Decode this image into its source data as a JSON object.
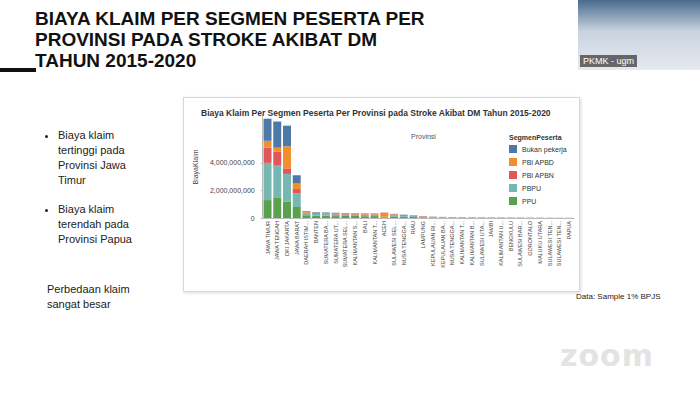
{
  "slide": {
    "title": [
      "BIAYA KLAIM PER SEGMEN PESERTA PER",
      "PROVINSI PADA STROKE AKIBAT DM",
      "TAHUN 2015-2020"
    ],
    "bullets": [
      "Biaya klaim tertinggi pada Provinsi Jawa Timur",
      "Biaya klaim terendah pada Provinsi Papua"
    ],
    "note": "Perbedaan klaim sangat besar",
    "source": "Data: Sample 1% BPJS",
    "speaker_label": "PKMK - ugm",
    "watermark": "zoom"
  },
  "chart_data": {
    "type": "bar",
    "title": "Biaya Klaim Per Segmen Peserta Per Provinsi pada Stroke Akibat DM Tahun 2015-2020",
    "x_label": "Provinsi",
    "y_label": "BiayaKlaim",
    "legend_title": "SegmenPeserta",
    "legend": "right",
    "stacked": true,
    "grid": false,
    "categories": [
      "JAWA TIMUR",
      "JAWA TENGAH",
      "DKI JAKARTA",
      "JAWA BARAT",
      "DAERAH ISTIM...",
      "BANTEN",
      "SUMATERA BA...",
      "SUMATERA UT...",
      "SUMATERA SEL...",
      "KALIMANTAN S...",
      "BALI",
      "KALIMANTAN T...",
      "ACEH",
      "SULAWESI SEL...",
      "NUSA TENGGA...",
      "RIAU",
      "LAMPUNG",
      "KEPULAUAN RI...",
      "KEPULAUAN BA...",
      "NUSA TENGGA...",
      "KALIMANTAN T...",
      "KALIMANTAN B...",
      "SULAWESI UTA...",
      "JAMBI",
      "KALIMANTAN U...",
      "BENGKULU",
      "SULAWESI BAR...",
      "GORONTALO",
      "MALUKU UTARA",
      "SULAWESI TEN...",
      "SULAWESI TEN...",
      "PAPUA"
    ],
    "series": [
      {
        "name": "Bukan pekerja",
        "color": "#4e79a7",
        "values": [
          1600000000,
          1900000000,
          1500000000,
          600000000,
          50000000,
          40000000,
          40000000,
          40000000,
          30000000,
          30000000,
          30000000,
          30000000,
          10000000,
          20000000,
          20000000,
          20000000,
          10000000,
          10000000,
          10000000,
          5000000,
          5000000,
          6000000,
          5000000,
          5000000,
          4000000,
          4000000,
          3000000,
          3000000,
          3000000,
          2000000,
          2000000,
          2000000
        ]
      },
      {
        "name": "PBI APBD",
        "color": "#f28e2b",
        "values": [
          500000000,
          300000000,
          1600000000,
          400000000,
          50000000,
          20000000,
          20000000,
          10000000,
          20000000,
          20000000,
          40000000,
          20000000,
          300000000,
          20000000,
          10000000,
          10000000,
          10000000,
          10000000,
          0,
          5000000,
          5000000,
          6000000,
          5000000,
          5000000,
          4000000,
          4000000,
          4000000,
          3000000,
          3000000,
          3000000,
          2000000,
          2000000
        ]
      },
      {
        "name": "PBI APBN",
        "color": "#e15759",
        "values": [
          1100000000,
          1000000000,
          400000000,
          300000000,
          80000000,
          60000000,
          60000000,
          70000000,
          60000000,
          50000000,
          40000000,
          40000000,
          20000000,
          60000000,
          60000000,
          20000000,
          30000000,
          10000000,
          10000000,
          20000000,
          10000000,
          12000000,
          11000000,
          10000000,
          9000000,
          8000000,
          7000000,
          6000000,
          6000000,
          5000000,
          5000000,
          4000000
        ]
      },
      {
        "name": "PBPU",
        "color": "#76b7b2",
        "values": [
          2700000000,
          2300000000,
          2000000000,
          1000000000,
          120000000,
          120000000,
          120000000,
          120000000,
          100000000,
          100000000,
          100000000,
          100000000,
          20000000,
          80000000,
          60000000,
          70000000,
          40000000,
          30000000,
          30000000,
          15000000,
          20000000,
          15000000,
          14000000,
          12000000,
          11000000,
          10000000,
          9000000,
          8000000,
          7000000,
          6000000,
          6000000,
          5000000
        ]
      },
      {
        "name": "PPU",
        "color": "#59a14f",
        "values": [
          1300000000,
          1500000000,
          1200000000,
          800000000,
          200000000,
          180000000,
          160000000,
          140000000,
          150000000,
          150000000,
          130000000,
          140000000,
          50000000,
          120000000,
          90000000,
          80000000,
          50000000,
          40000000,
          30000000,
          25000000,
          25000000,
          21000000,
          20000000,
          18000000,
          17000000,
          14000000,
          12000000,
          10000000,
          9000000,
          9000000,
          7000000,
          7000000
        ]
      }
    ],
    "ylim": [
      0,
      7400000000
    ],
    "yticks": [
      0,
      {
        "value": 2000000000,
        "label": "2,000,000,000"
      },
      {
        "value": 4000000000,
        "label": "4,000,000,000"
      }
    ]
  }
}
